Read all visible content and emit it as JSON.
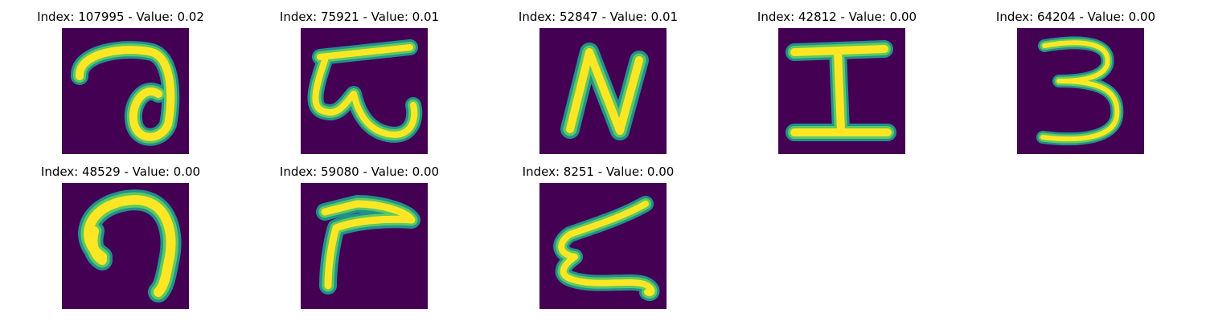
{
  "figure": {
    "panels": [
      {
        "index": "107995",
        "value": "0.02",
        "title": "Index: 107995 - Value: 0.02",
        "glyph": "handwritten-a-loop"
      },
      {
        "index": "75921",
        "value": "0.01",
        "title": "Index: 75921 - Value: 0.01",
        "glyph": "handwritten-w-bar"
      },
      {
        "index": "52847",
        "value": "0.01",
        "title": "Index: 52847 - Value: 0.01",
        "glyph": "handwritten-N"
      },
      {
        "index": "42812",
        "value": "0.00",
        "title": "Index: 42812 - Value: 0.00",
        "glyph": "handwritten-I"
      },
      {
        "index": "64204",
        "value": "0.00",
        "title": "Index: 64204 - Value: 0.00",
        "glyph": "handwritten-3"
      },
      {
        "index": "48529",
        "value": "0.00",
        "title": "Index: 48529 - Value: 0.00",
        "glyph": "handwritten-hook"
      },
      {
        "index": "59080",
        "value": "0.00",
        "title": "Index: 59080 - Value: 0.00",
        "glyph": "handwritten-r"
      },
      {
        "index": "8251",
        "value": "0.00",
        "title": "Index: 8251 - Value: 0.00",
        "glyph": "handwritten-z"
      }
    ],
    "colors": {
      "background": "#440154",
      "stroke_core": "#fde725",
      "stroke_mid": "#5ec962",
      "stroke_edge": "#21918c"
    }
  }
}
